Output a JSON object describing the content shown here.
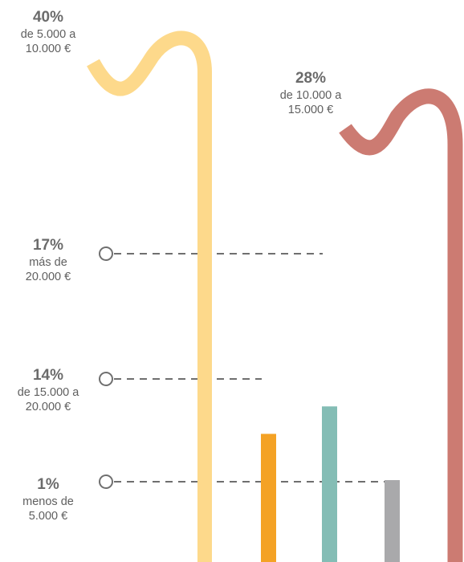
{
  "chart_data": {
    "type": "bar",
    "categories": [
      "de 5.000 a 10.000 €",
      "de 10.000 a 15.000 €",
      "más de 20.000 €",
      "de 15.000 a 20.000 €",
      "menos de 5.000 €"
    ],
    "values": [
      40,
      28,
      17,
      14,
      1
    ],
    "unit": "%",
    "grid": false,
    "series": [
      {
        "value": 40,
        "pct_label": "40%",
        "line1": "de 5.000 a",
        "line2": "10.000 €",
        "color": "#fdd98b",
        "shape": "curl"
      },
      {
        "value": 28,
        "pct_label": "28%",
        "line1": "de 10.000 a",
        "line2": "15.000 €",
        "color": "#cc7b72",
        "shape": "curl"
      },
      {
        "value": 17,
        "pct_label": "17%",
        "line1": "más de",
        "line2": "20.000 €",
        "color": "#84bdb5",
        "shape": "bar"
      },
      {
        "value": 14,
        "pct_label": "14%",
        "line1": "de 15.000 a",
        "line2": "20.000 €",
        "color": "#f4a225",
        "shape": "bar"
      },
      {
        "value": 1,
        "pct_label": "1%",
        "line1": "menos de",
        "line2": "5.000 €",
        "color": "#a9a9ab",
        "shape": "bar"
      }
    ]
  }
}
